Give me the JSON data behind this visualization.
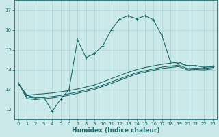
{
  "title": "",
  "xlabel": "Humidex (Indice chaleur)",
  "ylabel": "",
  "bg_color": "#cce9e9",
  "grid_color": "#aad4d4",
  "line_color": "#1e6b6b",
  "x_main": [
    0,
    1,
    2,
    3,
    4,
    5,
    6,
    7,
    8,
    9,
    10,
    11,
    12,
    13,
    14,
    15,
    16,
    17,
    18,
    19,
    20,
    21,
    22,
    23
  ],
  "y_main": [
    13.3,
    12.7,
    12.6,
    12.6,
    11.9,
    12.5,
    13.0,
    15.5,
    14.6,
    14.8,
    15.2,
    16.0,
    16.55,
    16.7,
    16.55,
    16.7,
    16.5,
    15.7,
    14.4,
    14.3,
    14.2,
    14.2,
    14.1,
    14.15
  ],
  "y_line2": [
    13.3,
    12.7,
    12.75,
    12.78,
    12.82,
    12.88,
    12.94,
    13.02,
    13.12,
    13.22,
    13.38,
    13.54,
    13.7,
    13.86,
    14.0,
    14.1,
    14.18,
    14.26,
    14.32,
    14.37,
    14.18,
    14.18,
    14.15,
    14.17
  ],
  "y_line3": [
    13.3,
    12.62,
    12.56,
    12.6,
    12.64,
    12.7,
    12.78,
    12.87,
    12.97,
    13.07,
    13.22,
    13.38,
    13.53,
    13.69,
    13.84,
    13.94,
    14.03,
    14.12,
    14.17,
    14.22,
    14.05,
    14.07,
    14.05,
    14.1
  ],
  "y_line4": [
    13.3,
    12.54,
    12.48,
    12.53,
    12.57,
    12.63,
    12.71,
    12.8,
    12.9,
    13.0,
    13.15,
    13.3,
    13.46,
    13.62,
    13.77,
    13.87,
    13.96,
    14.05,
    14.1,
    14.15,
    13.98,
    14.0,
    13.98,
    14.03
  ],
  "ylim": [
    11.5,
    17.5
  ],
  "yticks": [
    12,
    13,
    14,
    15,
    16,
    17
  ],
  "xlim": [
    -0.5,
    23.5
  ],
  "xticks": [
    0,
    1,
    2,
    3,
    4,
    5,
    6,
    7,
    8,
    9,
    10,
    11,
    12,
    13,
    14,
    15,
    16,
    17,
    18,
    19,
    20,
    21,
    22,
    23
  ],
  "marker": "+",
  "markersize": 3,
  "linewidth": 0.8,
  "tick_fontsize": 5,
  "label_fontsize": 6.5
}
